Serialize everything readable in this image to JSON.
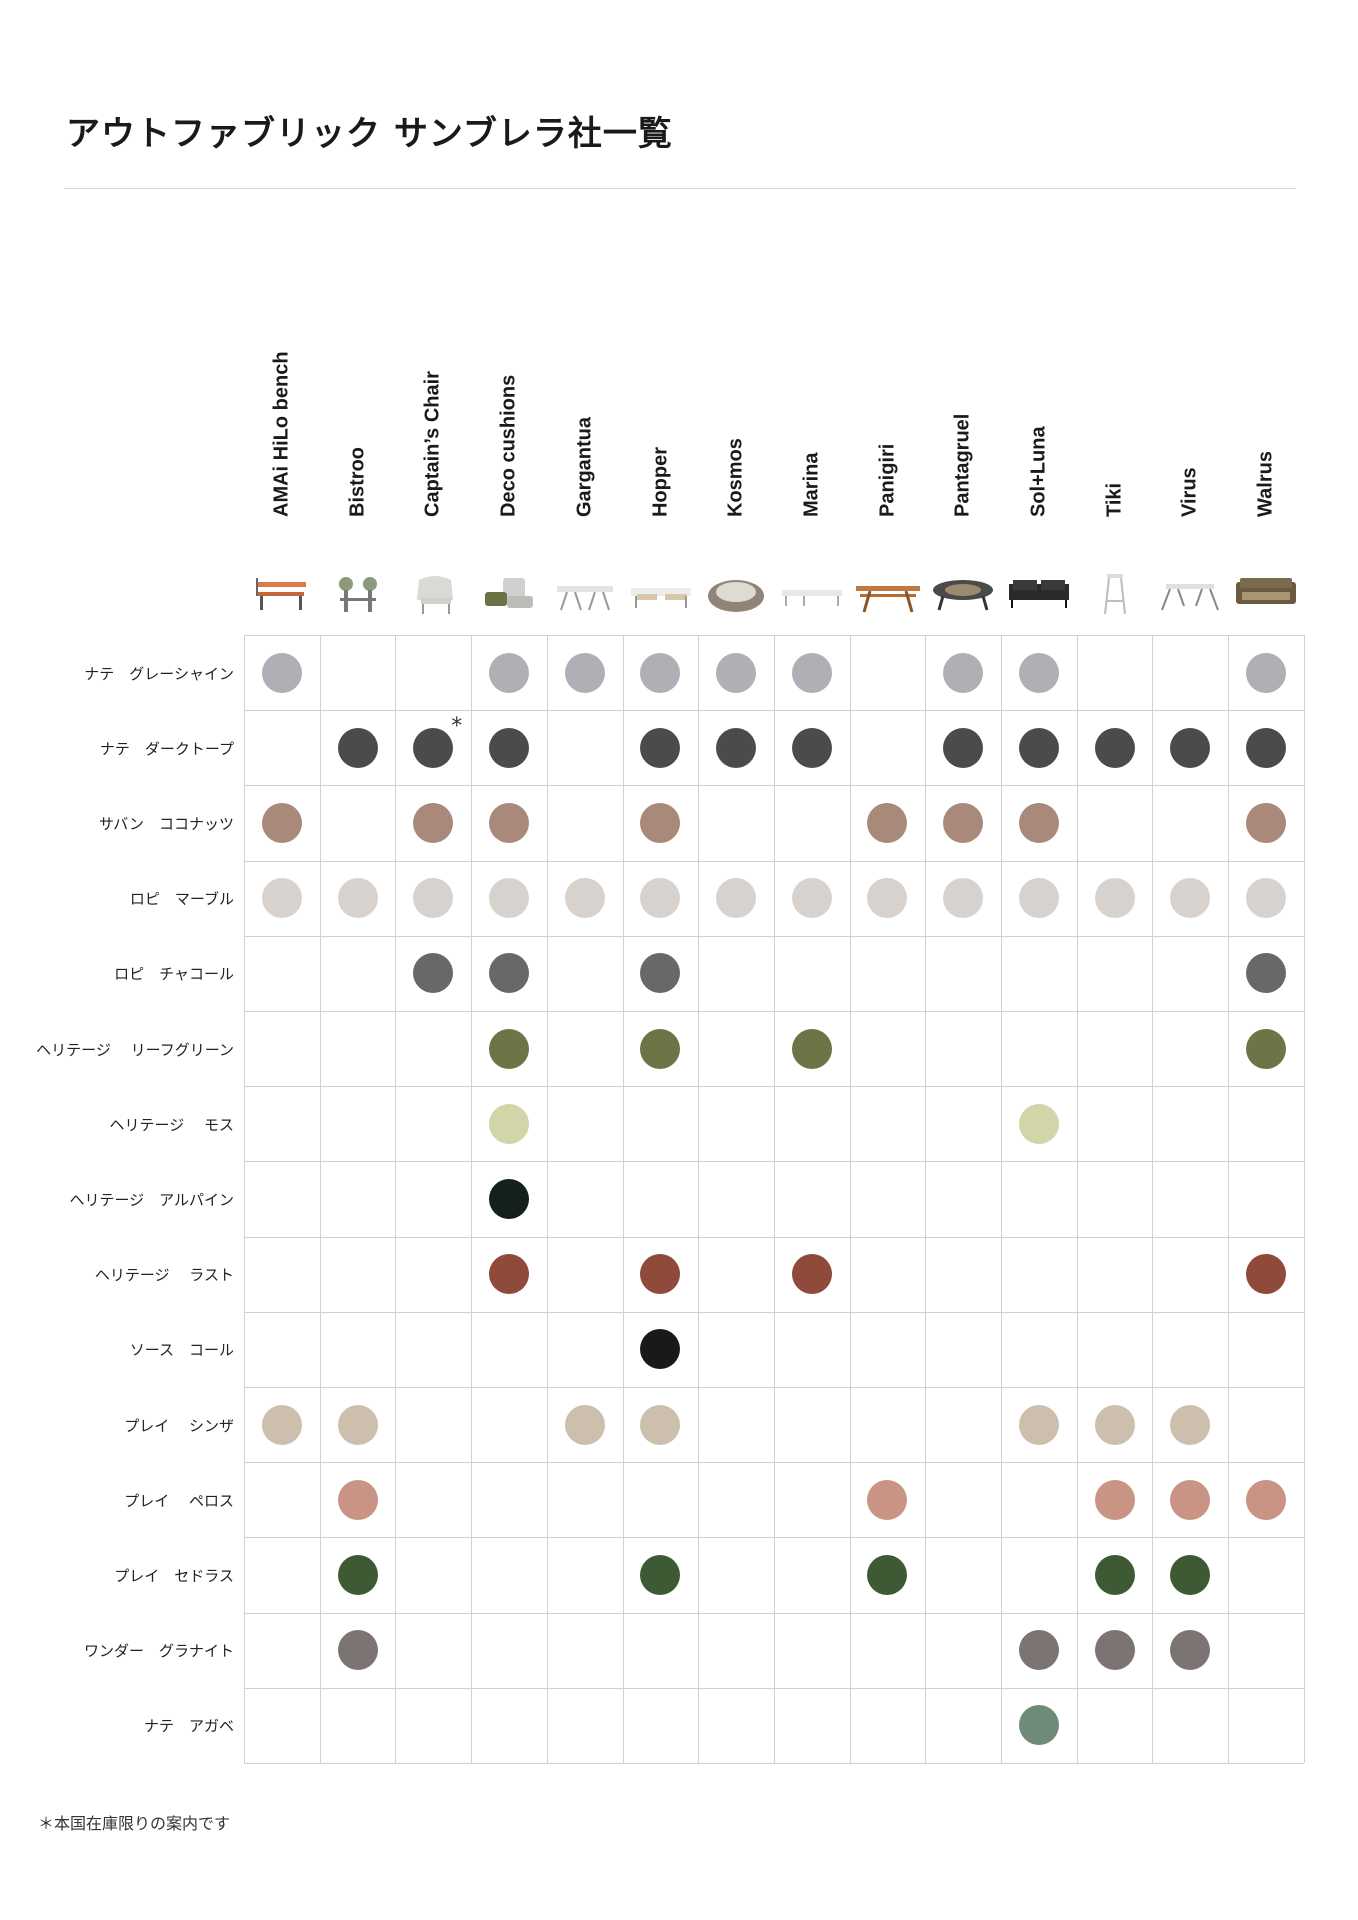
{
  "title": "アウトファブリック サンブレラ社一覧",
  "columns": [
    "AMAi HiLo bench",
    "Bistroo",
    "Captain’s Chair",
    "Deco cushions",
    "Gargantua",
    "Hopper",
    "Kosmos",
    "Marina",
    "Panigiri",
    "Pantagruel",
    "Sol+Luna",
    "Tiki",
    "Virus",
    "Walrus"
  ],
  "thumbnails": [
    "bench-icon",
    "stool-icon",
    "armchair-icon",
    "cushion-icon",
    "picnic-table-icon",
    "long-table-icon",
    "round-lounger-icon",
    "low-table-icon",
    "wood-table-icon",
    "round-table-icon",
    "sofa-icon",
    "tall-stool-icon",
    "metal-table-icon",
    "lounge-sofa-icon"
  ],
  "rows": [
    {
      "label": "ナテ　グレーシャイン",
      "color": "#aeb0b5",
      "cols": [
        0,
        3,
        4,
        5,
        6,
        7,
        9,
        10,
        13
      ]
    },
    {
      "label": "ナテ　ダークトープ",
      "color": "#4d4a4a",
      "cols": [
        1,
        2,
        3,
        5,
        6,
        7,
        9,
        10,
        11,
        12,
        13
      ]
    },
    {
      "label": "サバン　ココナッツ",
      "color": "#a8897a",
      "cols": [
        0,
        2,
        3,
        5,
        8,
        9,
        10,
        13
      ]
    },
    {
      "label": "ロピ　マーブル",
      "color": "#d7d2cd",
      "cols": [
        0,
        1,
        2,
        3,
        4,
        5,
        6,
        7,
        8,
        9,
        10,
        11,
        12,
        13
      ]
    },
    {
      "label": "ロピ　チャコール",
      "color": "#6a6767",
      "cols": [
        2,
        3,
        5,
        13
      ]
    },
    {
      "label": "ヘリテージ　 リーフグリーン",
      "color": "#6f7447",
      "cols": [
        3,
        5,
        7,
        13
      ]
    },
    {
      "label": "ヘリテージ　 モス",
      "color": "#d1d5a8",
      "cols": [
        3,
        10
      ]
    },
    {
      "label": "ヘリテージ　アルパイン",
      "color": "#13201d",
      "cols": [
        3
      ]
    },
    {
      "label": "ヘリテージ　 ラスト",
      "color": "#8f4a3c",
      "cols": [
        3,
        5,
        7,
        13
      ]
    },
    {
      "label": "ソース　コール",
      "color": "#1a1818",
      "cols": [
        5
      ]
    },
    {
      "label": "プレイ　 シンザ",
      "color": "#cdbfad",
      "cols": [
        0,
        1,
        4,
        5,
        10,
        11,
        12
      ]
    },
    {
      "label": "プレイ　 ペロス",
      "color": "#c99483",
      "cols": [
        1,
        8,
        11,
        12,
        13
      ]
    },
    {
      "label": "プレイ　セドラス",
      "color": "#3e5a34",
      "cols": [
        1,
        5,
        8,
        11,
        12
      ]
    },
    {
      "label": "ワンダー　グラナイト",
      "color": "#7c7473",
      "cols": [
        1,
        10,
        11,
        12
      ]
    },
    {
      "label": "ナテ　アガベ",
      "color": "#6f8a78",
      "cols": [
        10
      ]
    }
  ],
  "asterisk": {
    "row": 1,
    "col": 2,
    "text": "*"
  },
  "footnote": "＊本国在庫限りの案内です"
}
